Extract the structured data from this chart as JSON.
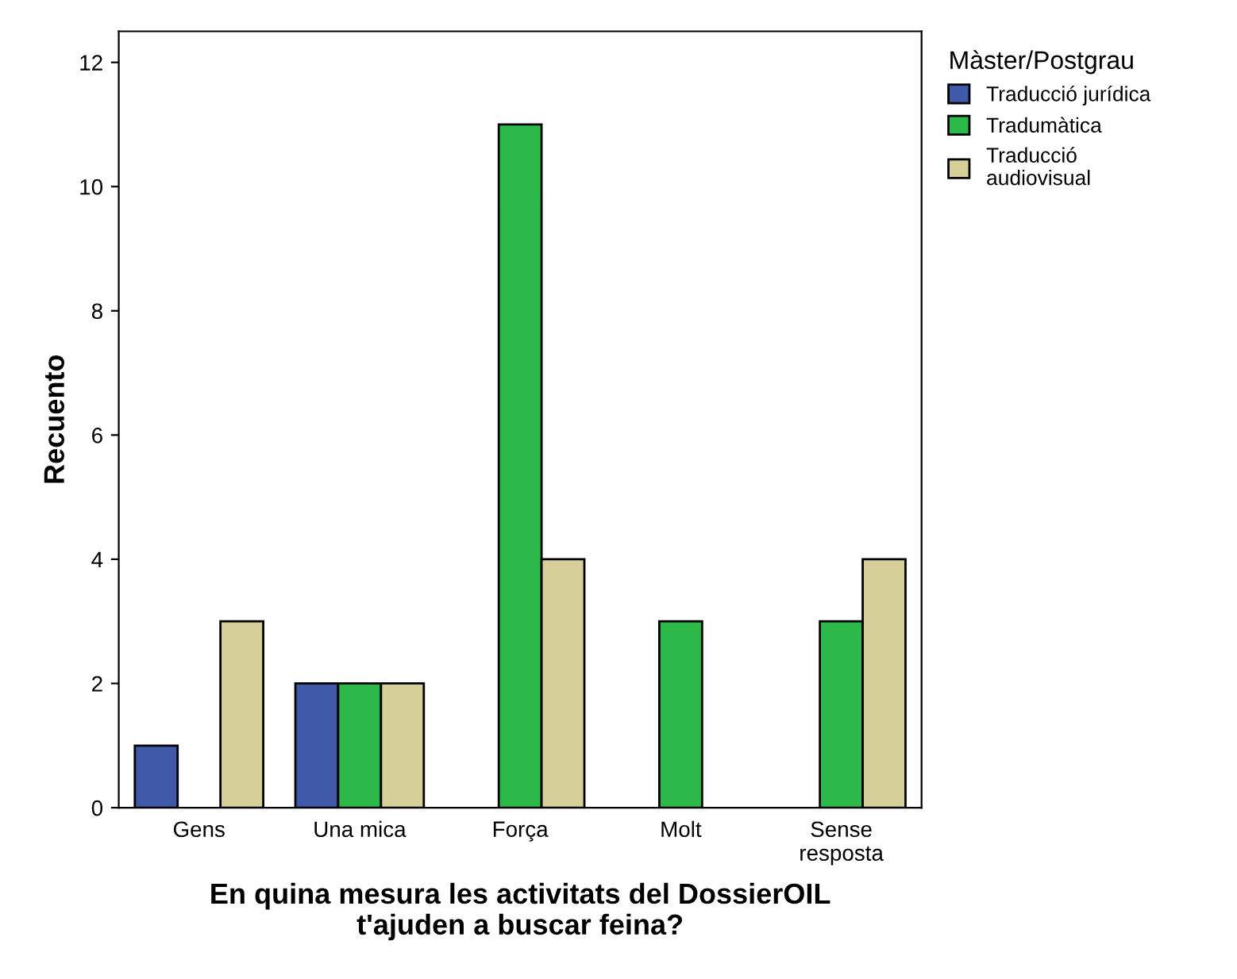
{
  "chart_data": {
    "type": "bar",
    "xlabel": "En quina mesura les activitats del DossierOIL\nt'ajuden a buscar feina?",
    "ylabel": "Recuento",
    "legend_title": "Màster/Postgrau",
    "categories": [
      "Gens",
      "Una mica",
      "Força",
      "Molt",
      "Sense\nresposta"
    ],
    "series": [
      {
        "name": "Traducció jurídica",
        "color": "#3f58a8",
        "values": [
          1,
          2,
          null,
          null,
          null
        ]
      },
      {
        "name": "Tradumàtica",
        "color": "#2db84a",
        "values": [
          null,
          2,
          11,
          3,
          3
        ]
      },
      {
        "name": "Traducció\naudiovisual",
        "color": "#d6cf9a",
        "values": [
          3,
          2,
          4,
          null,
          4
        ]
      }
    ],
    "ylim": [
      0,
      12.5
    ],
    "yticks": [
      0,
      2,
      4,
      6,
      8,
      10,
      12
    ],
    "grid": false,
    "legend": "top right"
  }
}
